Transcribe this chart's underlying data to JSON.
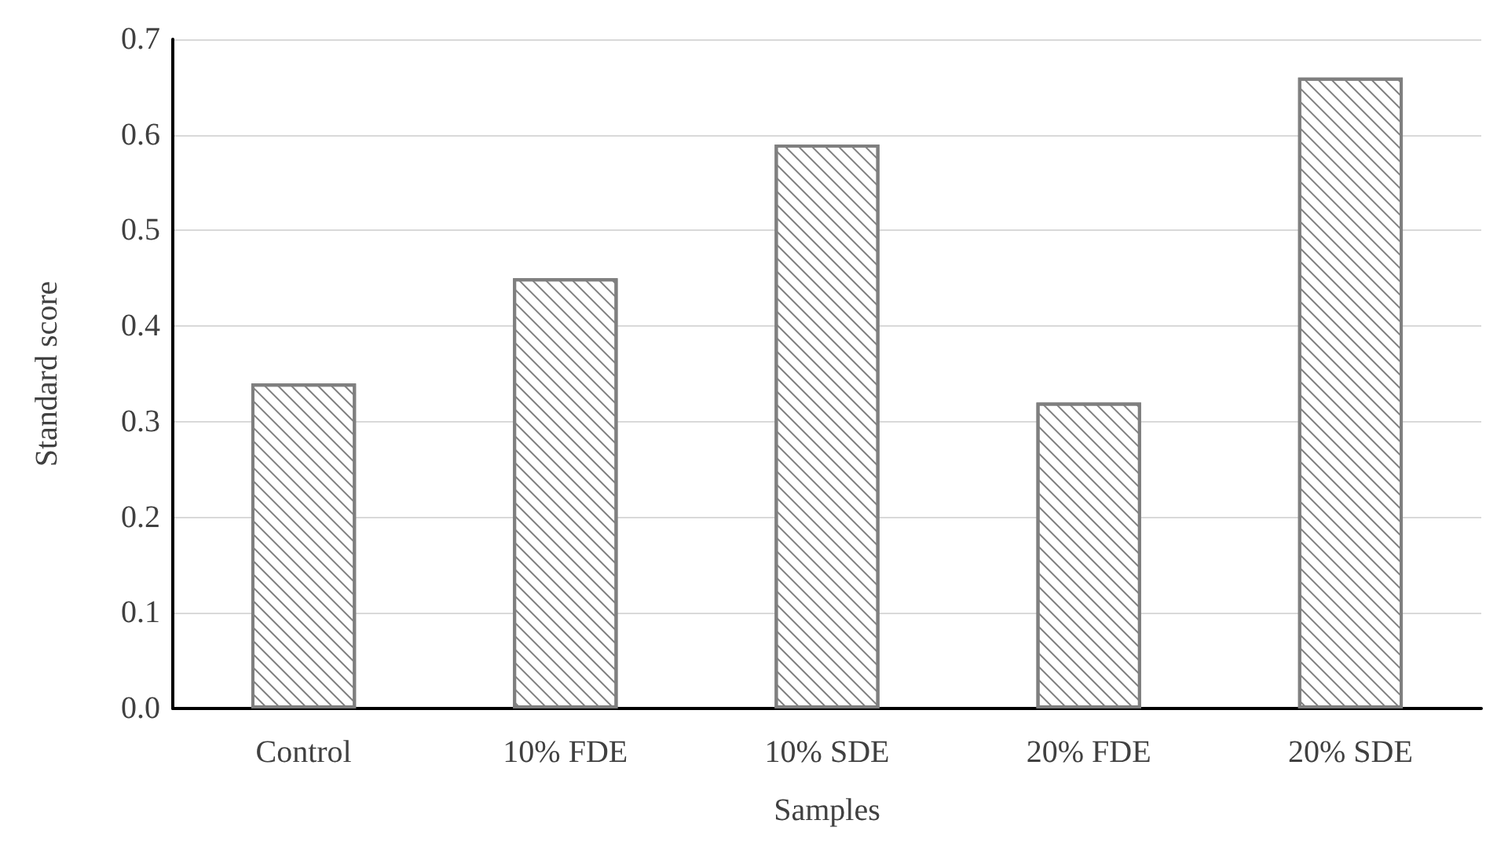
{
  "chart_data": {
    "type": "bar",
    "xlabel": "Samples",
    "ylabel": "Standard score",
    "categories": [
      "Control",
      "10% FDE",
      "10% SDE",
      "20% FDE",
      "20% SDE"
    ],
    "values": [
      0.34,
      0.45,
      0.59,
      0.32,
      0.66
    ],
    "color": "#7f7f7f",
    "ylim": [
      0,
      0.7
    ],
    "yticks": [
      {
        "value": 0,
        "label": "0.0"
      },
      0.1,
      0.2,
      0.3,
      0.4,
      0.5,
      0.6,
      0.7
    ],
    "grid": "y"
  }
}
